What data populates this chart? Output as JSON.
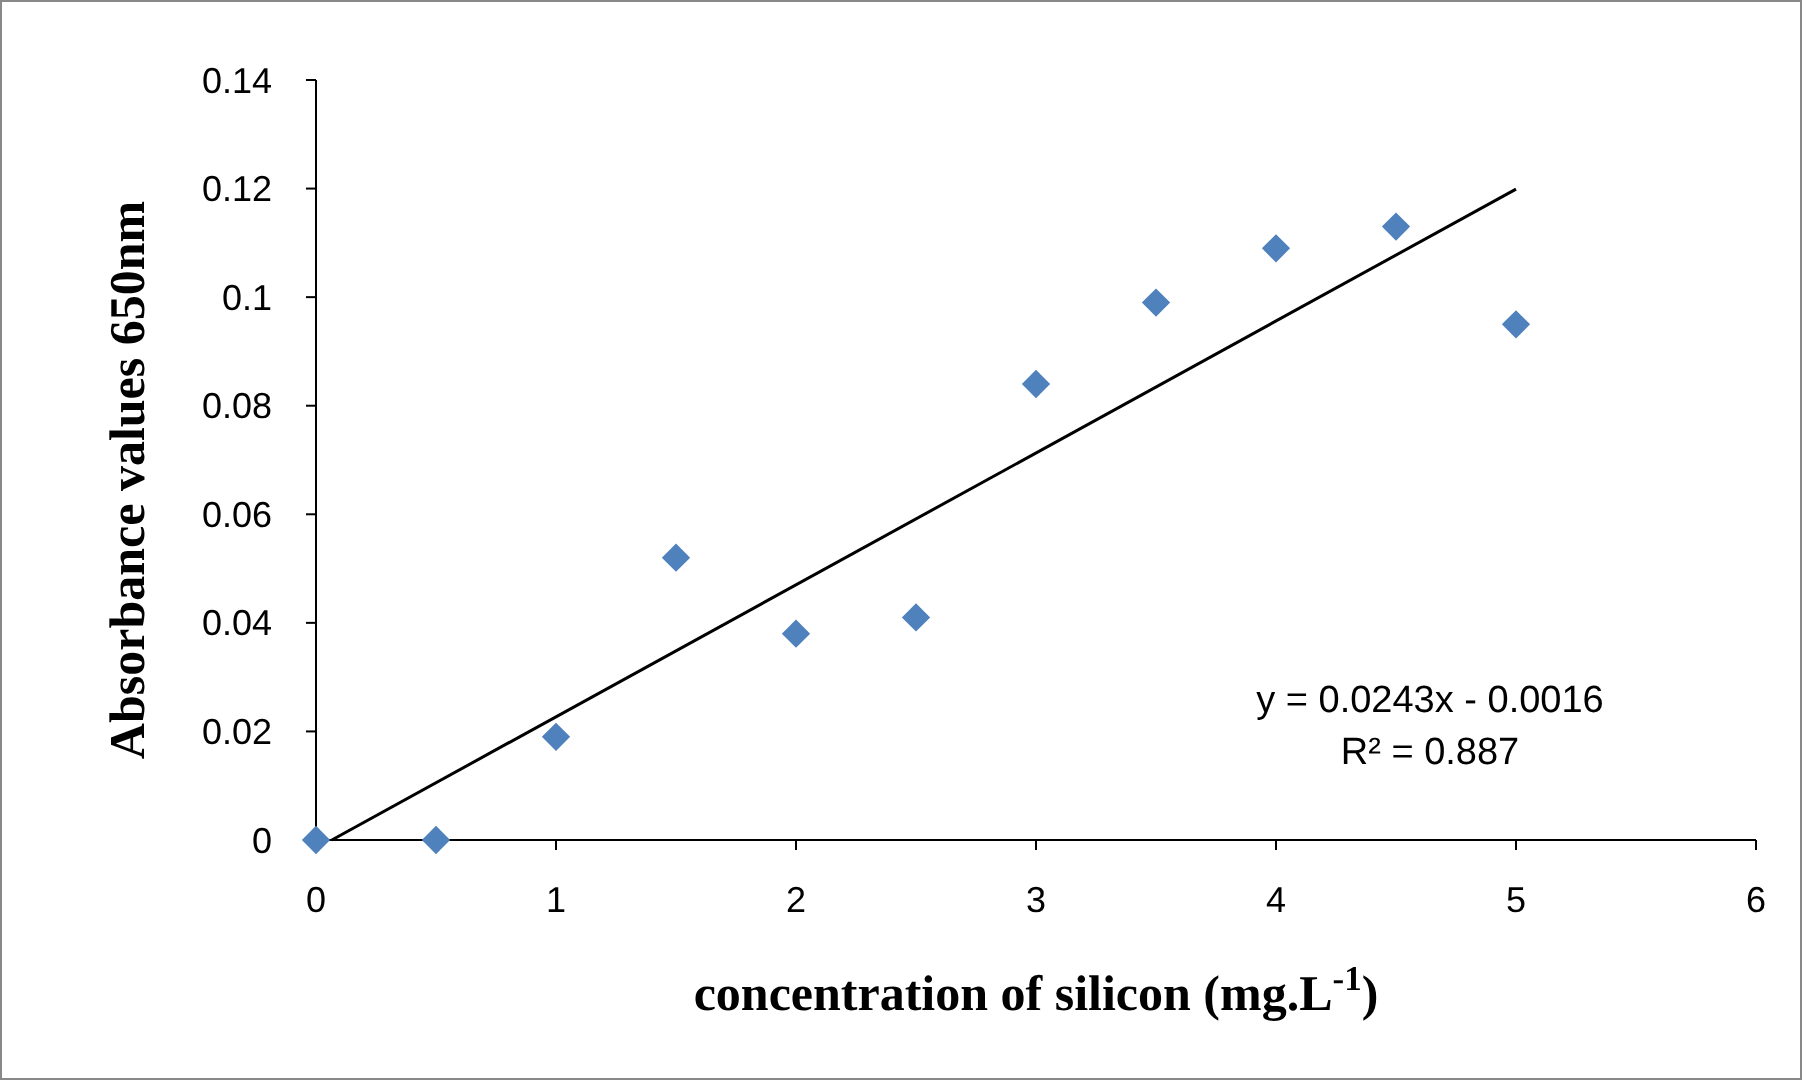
{
  "chart_data": {
    "type": "scatter",
    "xlabel": "concentration of silicon (mg.L$^{-1}$)",
    "ylabel": "Absorbance values 650nm",
    "xlim": [
      0,
      6
    ],
    "xticks": [
      0,
      1,
      2,
      3,
      4,
      5,
      6
    ],
    "ylim": [
      0,
      0.14
    ],
    "yticks": [
      0,
      0.02,
      0.04,
      0.06,
      0.08,
      0.1,
      0.12,
      0.14
    ],
    "grid": false,
    "x": [
      0,
      0.5,
      1,
      1.5,
      2,
      2.5,
      3,
      3.5,
      4,
      4.5,
      5
    ],
    "series": [
      {
        "color": "#4f81bd",
        "marker": "diamond",
        "values": [
          0,
          0,
          0.019,
          0.052,
          0.038,
          0.041,
          0.084,
          0.099,
          0.109,
          0.113,
          0.095
        ]
      },
      {
        "type": "line",
        "color": "#000000",
        "marker": "none",
        "line_style": "solid",
        "x": [
          0.066,
          5
        ],
        "values": [
          0,
          0.1199
        ]
      }
    ],
    "annotations": [
      "y = 0.0243x - 0.0016",
      "R² = 0.887"
    ]
  }
}
